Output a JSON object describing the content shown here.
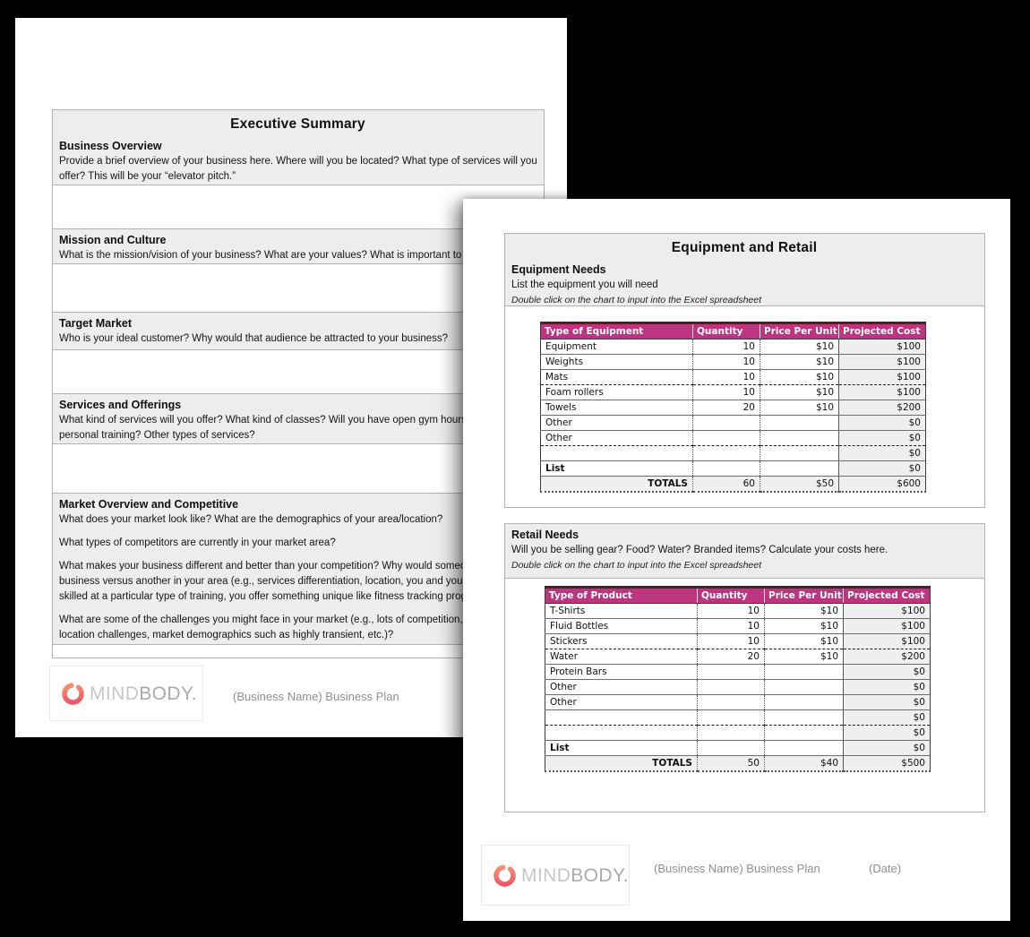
{
  "colors": {
    "table_header_bg": "#bd3580",
    "table_header_top_border": "#4f1f2a",
    "section_gray_bg": "#ededed",
    "logo_gradient_start": "#ee4d64",
    "logo_gradient_end": "#f79a72",
    "footer_text": "#8f8f8f"
  },
  "exec_page": {
    "title": "Executive Summary",
    "sections": [
      {
        "heading": "Business Overview",
        "paragraphs": [
          [
            "Provide a brief overview of your business here. Where will you be located? What type of services will you",
            "offer? This will be your “elevator pitch.”"
          ]
        ]
      },
      {
        "heading": "Mission and Culture",
        "paragraphs": [
          [
            "What is the mission/vision of your business? What are your values? What is important to yo"
          ]
        ]
      },
      {
        "heading": "Target Market",
        "paragraphs": [
          [
            "Who is your ideal customer? Why would that audience be attracted to your business?"
          ]
        ]
      },
      {
        "heading": "Services and Offerings",
        "paragraphs": [
          [
            "What kind of services will you offer? What kind of classes? Will you have open gym hours?",
            "personal training? Other types of services?"
          ]
        ]
      },
      {
        "heading": "Market Overview and Competitive",
        "paragraphs": [
          [
            "What does your market look like? What are the demographics of your area/location?"
          ],
          [
            "What types of competitors are currently in your market area?"
          ],
          [
            "What makes your business different and better than your competition? Why would someone",
            "business versus another in your area (e.g., services differentiation, location, you and your s",
            "skilled at a particular type of training, you offer something unique like fitness tracking progra"
          ],
          [
            "What are some of the challenges you might face in your market (e.g., lots of competition, di",
            "location challenges, market demographics such as highly transient, etc.)?"
          ]
        ]
      }
    ],
    "footer": {
      "logo": {
        "mind": "MIND",
        "body": "BODY",
        "dot": "."
      },
      "doc_label": "(Business Name) Business Plan"
    }
  },
  "equip_page": {
    "title": "Equipment and Retail",
    "equipment_section": {
      "heading": "Equipment Needs",
      "desc": "List the equipment you will need",
      "note": "Double click on the chart to input into the Excel spreadsheet",
      "table": {
        "headers": [
          "Type of Equipment",
          "Quantity",
          "Price Per Unit",
          "Projected Cost"
        ],
        "rows": [
          [
            "Equipment",
            "10",
            "$10",
            "$100"
          ],
          [
            "Weights",
            "10",
            "$10",
            "$100"
          ],
          [
            "Mats",
            "10",
            "$10",
            "$100"
          ],
          [
            "Foam rollers",
            "10",
            "$10",
            "$100"
          ],
          [
            "Towels",
            "20",
            "$10",
            "$200"
          ],
          [
            "Other",
            "",
            "",
            "$0"
          ],
          [
            "Other",
            "",
            "",
            "$0"
          ],
          [
            "",
            "",
            "",
            "$0"
          ],
          [
            "List",
            "",
            "",
            "$0"
          ]
        ],
        "totals": [
          "TOTALS",
          "60",
          "$50",
          "$600"
        ],
        "bold_rows": [
          8
        ],
        "dashed_after_rows": [
          2,
          6
        ]
      }
    },
    "retail_section": {
      "heading": "Retail Needs",
      "desc": "Will you be selling gear? Food? Water? Branded items? Calculate your costs here.",
      "note": "Double click on the chart to input into the Excel spreadsheet",
      "table": {
        "headers": [
          "Type of Product",
          "Quantity",
          "Price Per Unit",
          "Projected Cost"
        ],
        "rows": [
          [
            "T-Shirts",
            "10",
            "$10",
            "$100"
          ],
          [
            "Fluid Bottles",
            "10",
            "$10",
            "$100"
          ],
          [
            "Stickers",
            "10",
            "$10",
            "$100"
          ],
          [
            "Water",
            "20",
            "$10",
            "$200"
          ],
          [
            "Protein Bars",
            "",
            "",
            "$0"
          ],
          [
            "Other",
            "",
            "",
            "$0"
          ],
          [
            "Other",
            "",
            "",
            "$0"
          ],
          [
            "",
            "",
            "",
            "$0"
          ],
          [
            "",
            "",
            "",
            "$0"
          ],
          [
            "List",
            "",
            "",
            "$0"
          ]
        ],
        "totals": [
          "TOTALS",
          "50",
          "$40",
          "$500"
        ],
        "bold_rows": [
          9
        ],
        "dashed_after_rows": [
          2,
          7
        ]
      }
    },
    "footer": {
      "logo": {
        "mind": "MIND",
        "body": "BODY",
        "dot": "."
      },
      "doc_label": "(Business Name) Business Plan",
      "date_label": "(Date)"
    }
  }
}
